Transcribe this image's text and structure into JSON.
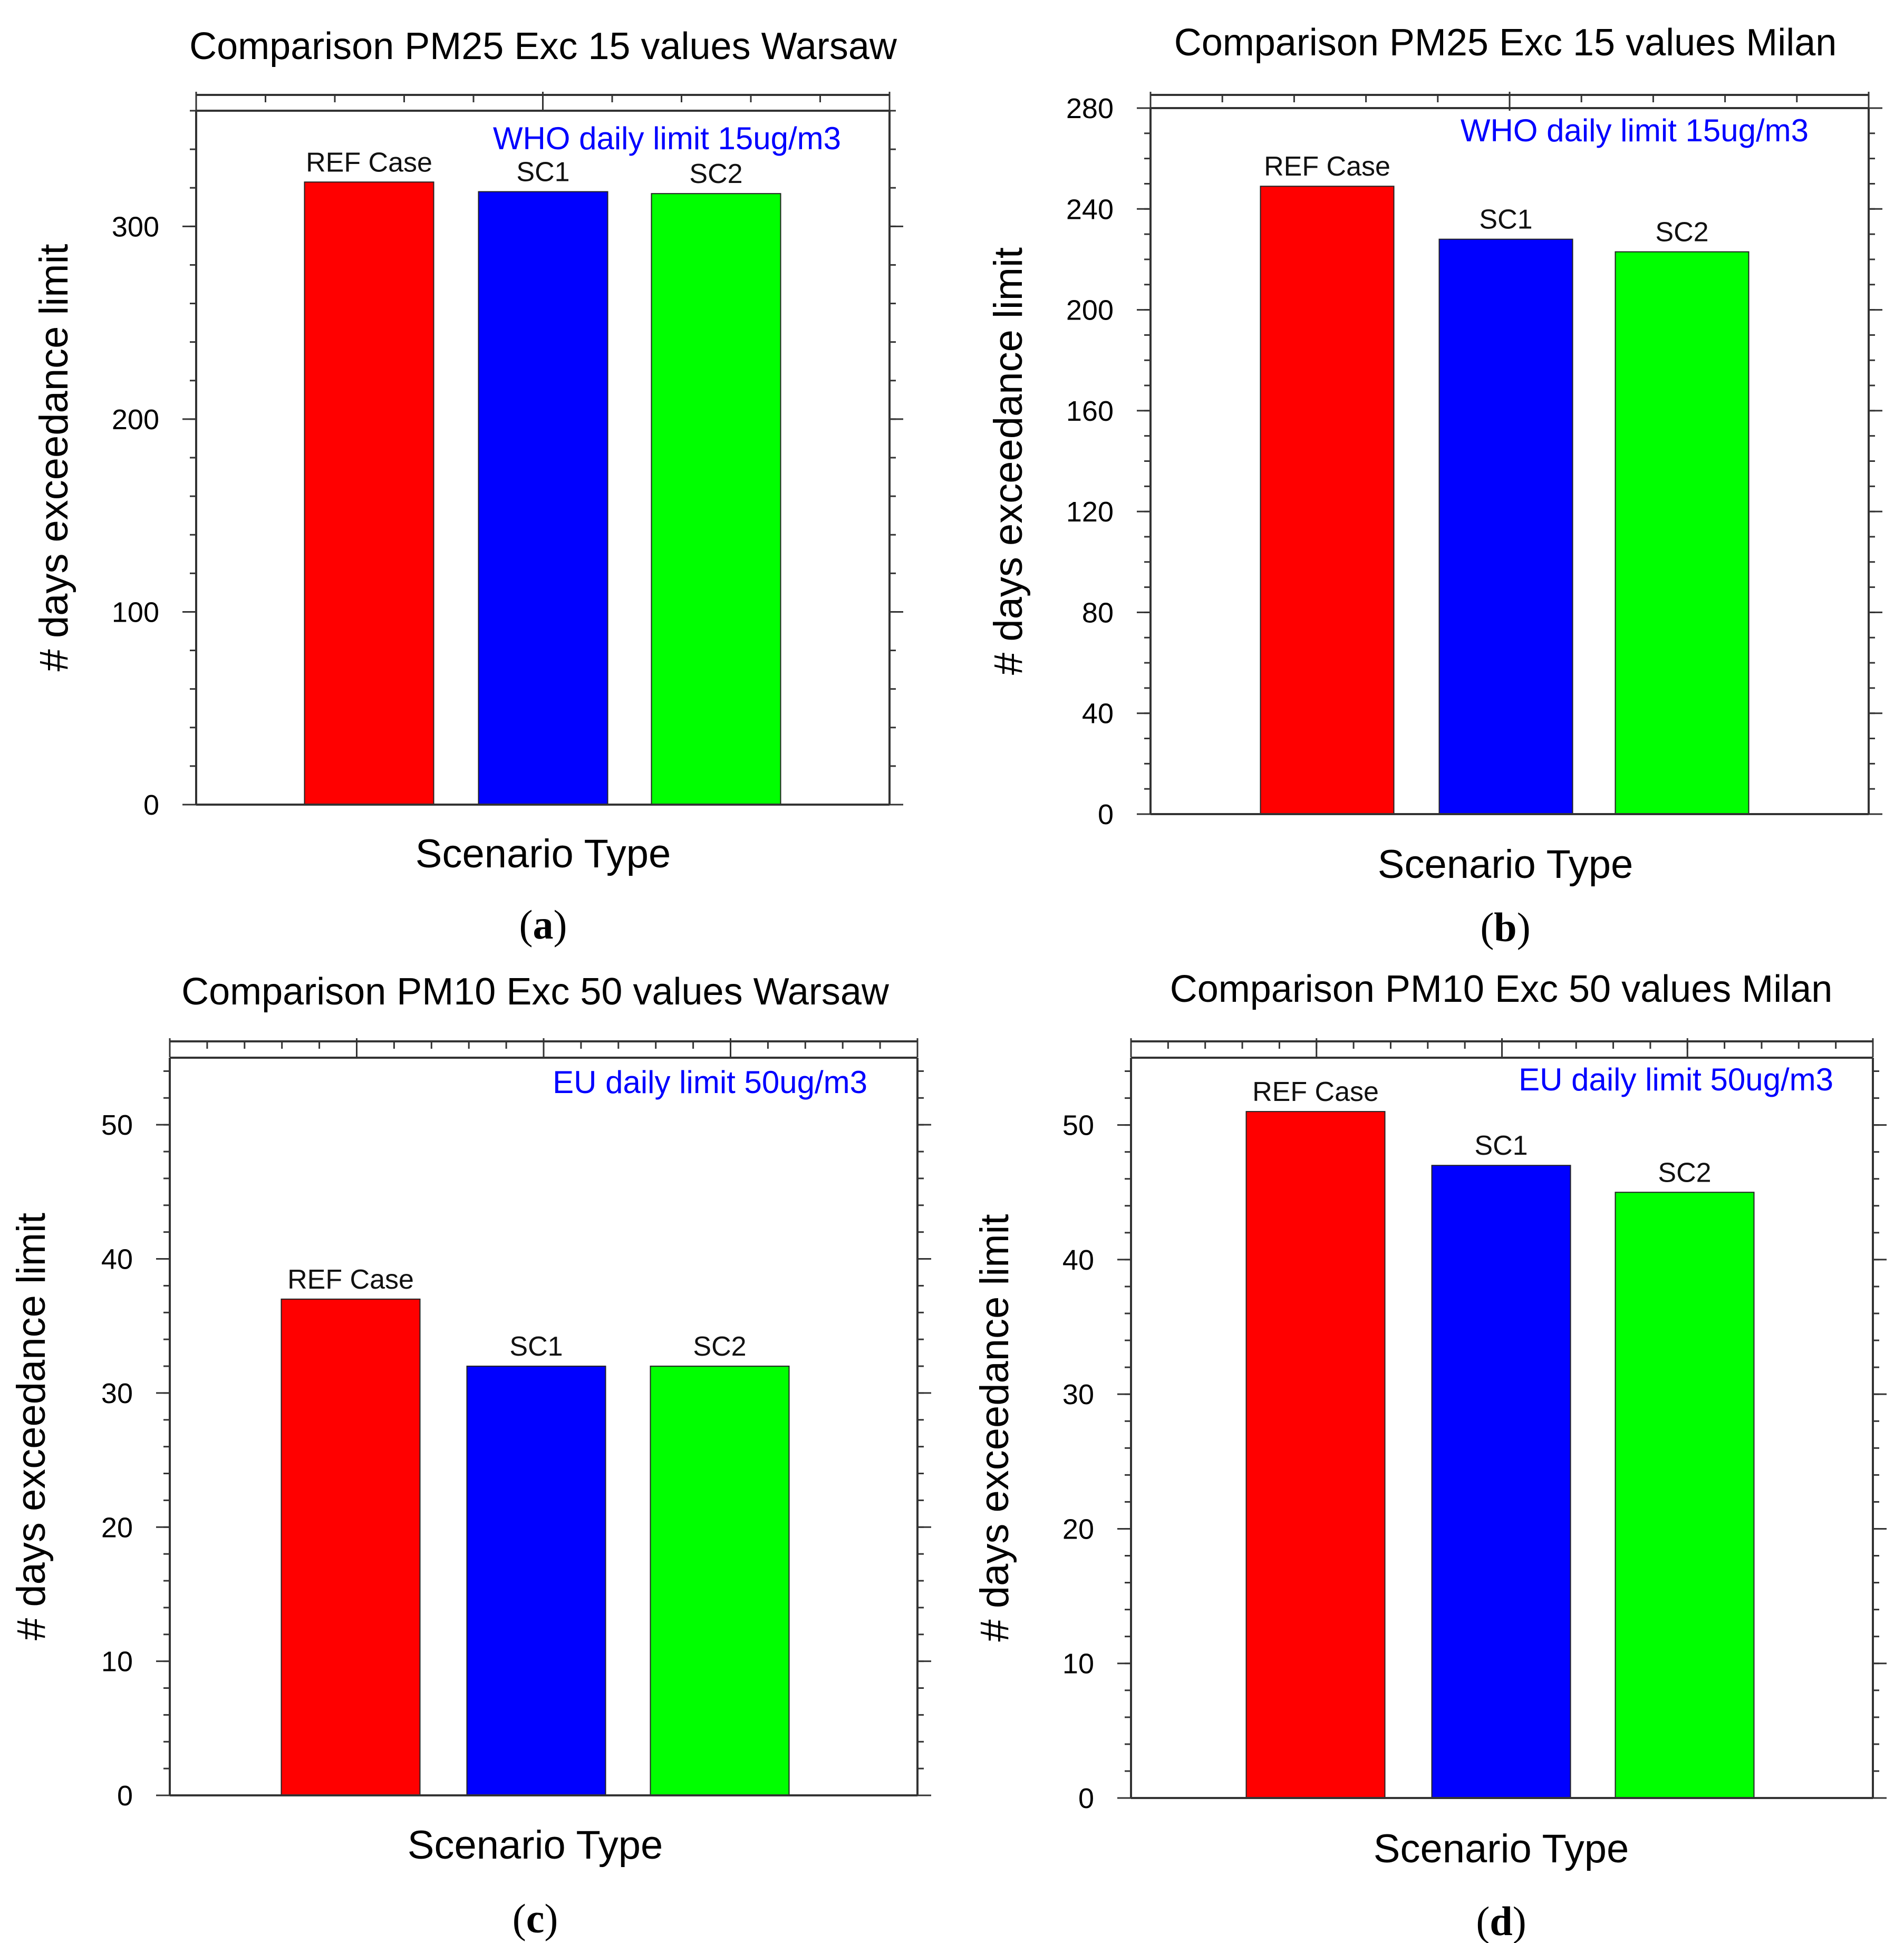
{
  "chart_data": [
    {
      "type": "bar",
      "panel": "a",
      "title": "Comparison PM25 Exc 15 values Warsaw",
      "xlabel": "Scenario Type",
      "ylabel": "# days exceedance limit",
      "annotation": "WHO daily limit 15ug/m3",
      "annotation_color": "#0000ff",
      "categories": [
        "REF Case",
        "SC1",
        "SC2"
      ],
      "values": [
        323,
        318,
        317
      ],
      "colors": [
        "#ff0000",
        "#0000ff",
        "#00ff00"
      ],
      "ylim": [
        0,
        360
      ],
      "yticks": [
        0,
        100,
        200,
        300
      ],
      "y_minor_step": 20,
      "x_major_ticks": [
        0,
        0.5,
        1
      ],
      "x_minor_step": 0.1
    },
    {
      "type": "bar",
      "panel": "b",
      "title": "Comparison PM25 Exc 15 values Milan",
      "xlabel": "Scenario Type",
      "ylabel": "# days exceedance limit",
      "annotation": "WHO daily limit 15ug/m3",
      "annotation_color": "#0000ff",
      "categories": [
        "REF Case",
        "SC1",
        "SC2"
      ],
      "values": [
        249,
        228,
        223
      ],
      "colors": [
        "#ff0000",
        "#0000ff",
        "#00ff00"
      ],
      "ylim": [
        0,
        280
      ],
      "yticks": [
        0,
        40,
        80,
        120,
        160,
        200,
        240,
        280
      ],
      "y_minor_step": 10,
      "x_major_ticks": [
        0,
        0.5,
        1
      ],
      "x_minor_step": 0.1
    },
    {
      "type": "bar",
      "panel": "c",
      "title": "Comparison PM10 Exc 50 values Warsaw",
      "xlabel": "Scenario Type",
      "ylabel": "# days exceedance limit",
      "annotation": "EU daily limit 50ug/m3",
      "annotation_color": "#0000ff",
      "categories": [
        "REF Case",
        "SC1",
        "SC2"
      ],
      "values": [
        37,
        32,
        32
      ],
      "colors": [
        "#ff0000",
        "#0000ff",
        "#00ff00"
      ],
      "ylim": [
        0,
        55
      ],
      "yticks": [
        0,
        10,
        20,
        30,
        40,
        50
      ],
      "y_minor_step": 2,
      "x_major_ticks": [
        0,
        0.25,
        0.5,
        0.75,
        1
      ],
      "x_minor_step": 0.05
    },
    {
      "type": "bar",
      "panel": "d",
      "title": "Comparison PM10 Exc 50 values Milan",
      "xlabel": "Scenario Type",
      "ylabel": "# days exceedance limit",
      "annotation": "EU daily limit 50ug/m3",
      "annotation_color": "#0000ff",
      "categories": [
        "REF Case",
        "SC1",
        "SC2"
      ],
      "values": [
        51,
        47,
        45
      ],
      "colors": [
        "#ff0000",
        "#0000ff",
        "#00ff00"
      ],
      "ylim": [
        0,
        55
      ],
      "yticks": [
        0,
        10,
        20,
        30,
        40,
        50
      ],
      "y_minor_step": 2,
      "x_major_ticks": [
        0,
        0.25,
        0.5,
        0.75,
        1
      ],
      "x_minor_step": 0.05
    }
  ]
}
